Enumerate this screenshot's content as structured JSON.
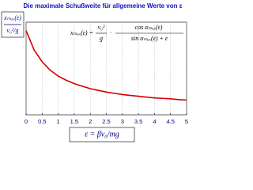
{
  "chart_data": {
    "type": "line",
    "title": "Die maximale Schußweite für allgemeine Werte von ε",
    "y_label": {
      "numerator": "xₘₐₓ(ε)",
      "denominator": "v₀²/g"
    },
    "x_label": "ε = βv₀/mg",
    "formula": {
      "lhs": "xₘₐₓ(ε) =",
      "frac1_num": "v₀²",
      "frac1_den": "g",
      "dot": "·",
      "frac2_num": "cos αₘₐₓ(ε)",
      "frac2_den": "sin αₘₐₓ(ε) + ε"
    },
    "x": [
      0,
      0.25,
      0.5,
      0.75,
      1,
      1.25,
      1.5,
      1.75,
      2,
      2.25,
      2.5,
      2.75,
      3,
      3.25,
      3.5,
      3.75,
      4,
      4.25,
      4.5,
      4.75,
      5
    ],
    "series": [
      {
        "name": "xₘₐₓ(ε)/(v₀²/g)",
        "color": "#d40000",
        "values": [
          1,
          0.77,
          0.63,
          0.53,
          0.46,
          0.41,
          0.37,
          0.34,
          0.31,
          0.29,
          0.27,
          0.255,
          0.24,
          0.23,
          0.22,
          0.21,
          0.2,
          0.195,
          0.19,
          0.18,
          0.175
        ]
      }
    ],
    "xlim": [
      0,
      5
    ],
    "xticks": [
      0,
      0.5,
      1,
      1.5,
      2,
      2.5,
      3,
      3.5,
      4,
      4.5,
      5
    ],
    "ylim": [
      0,
      1.1
    ],
    "grid": true
  }
}
